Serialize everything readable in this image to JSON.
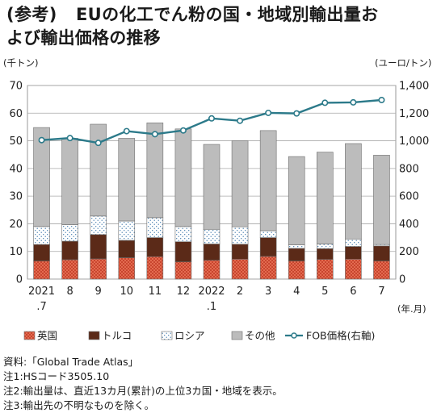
{
  "title": {
    "line1_prefix": "(参考)",
    "line1_main": "EUの化工でん粉の国・地域別輸出量お",
    "line2": "よび輸出価格の推移"
  },
  "chart_data": {
    "type": "bar",
    "stacked": true,
    "categories_top": [
      "2021",
      "8",
      "9",
      "10",
      "11",
      "12",
      "2022",
      "2",
      "3",
      "4",
      "5",
      "6",
      "7"
    ],
    "categories_bottom": [
      ".7",
      "",
      "",
      "",
      "",
      "",
      ".1",
      "",
      "",
      "",
      "",
      "",
      ""
    ],
    "x_unit_label": "(年.月)",
    "left_axis_unit": "(千トン)",
    "right_axis_unit": "(ユーロ/トン)",
    "left_ylim": [
      0,
      70
    ],
    "right_ylim": [
      0,
      1400
    ],
    "left_ticks": [
      "0",
      "10",
      "20",
      "30",
      "40",
      "50",
      "60",
      "70"
    ],
    "right_ticks": [
      "0",
      "200",
      "400",
      "600",
      "800",
      "1,000",
      "1,200",
      "1,400"
    ],
    "grid": true,
    "legend_position": "bottom",
    "series": [
      {
        "name": "英国",
        "color": "#e0624a",
        "values": [
          6.5,
          7.0,
          7.3,
          7.7,
          8.1,
          6.2,
          6.8,
          7.2,
          8.2,
          6.5,
          7.1,
          7.2,
          6.5
        ]
      },
      {
        "name": "トルコ",
        "color": "#5a2a1a",
        "values": [
          6.0,
          6.7,
          8.8,
          6.3,
          6.9,
          7.3,
          5.9,
          5.4,
          6.8,
          4.6,
          3.9,
          4.6,
          5.5
        ]
      },
      {
        "name": "ロシア",
        "color": "#ffffff",
        "values": [
          6.5,
          6.0,
          6.7,
          7.0,
          7.2,
          5.5,
          5.3,
          6.3,
          2.5,
          1.3,
          1.7,
          2.7,
          0.5
        ]
      },
      {
        "name": "その他",
        "color": "#bdbdbd",
        "values": [
          35.8,
          31.2,
          33.2,
          29.9,
          34.3,
          35.3,
          30.7,
          31.1,
          36.2,
          31.9,
          33.2,
          34.5,
          32.3
        ]
      }
    ],
    "line_series": {
      "name": "FOB価格(右軸)",
      "color": "#2c7a8a",
      "values": [
        1005,
        1020,
        985,
        1070,
        1048,
        1075,
        1162,
        1145,
        1202,
        1198,
        1275,
        1278,
        1295
      ]
    }
  },
  "notes": [
    "資料:「Global Trade Atlas」",
    "注1:HSコード3505.10",
    "注2:輸出量は、直近13カ月(累計)の上位3カ国・地域を表示。",
    "注3:輸出先の不明なものを除く。"
  ]
}
